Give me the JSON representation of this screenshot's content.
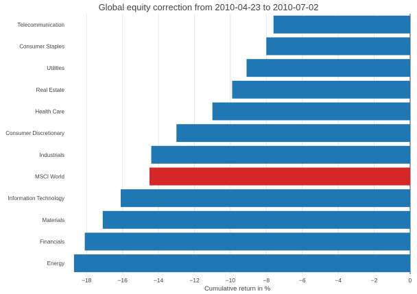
{
  "chart_data": {
    "type": "bar",
    "orientation": "horizontal",
    "title": "Global equity correction from 2010-04-23 to 2010-07-02",
    "xlabel": "Cumulative return in %",
    "ylabel": "",
    "xlim": [
      -19,
      0
    ],
    "xticks": [
      -18,
      -16,
      -14,
      -12,
      -10,
      -8,
      -6,
      -4,
      -2,
      0
    ],
    "xtick_labels": [
      "−18",
      "−16",
      "−14",
      "−12",
      "−10",
      "−8",
      "−6",
      "−4",
      "−2",
      "0"
    ],
    "grid": true,
    "categories": [
      "Telecommunication",
      "Consumer Staples",
      "Utilities",
      "Real Estate",
      "Health Care",
      "Consumer Discretionary",
      "Industrials",
      "MSCI World",
      "Information Technology",
      "Materials",
      "Financials",
      "Energy"
    ],
    "values": [
      -7.6,
      -8.0,
      -9.1,
      -9.9,
      -11.0,
      -13.0,
      -14.4,
      -14.5,
      -16.1,
      -17.1,
      -18.1,
      -18.7
    ],
    "colors": {
      "default": "#1f77b4",
      "highlight": "#d62728"
    },
    "highlight_category": "MSCI World"
  }
}
